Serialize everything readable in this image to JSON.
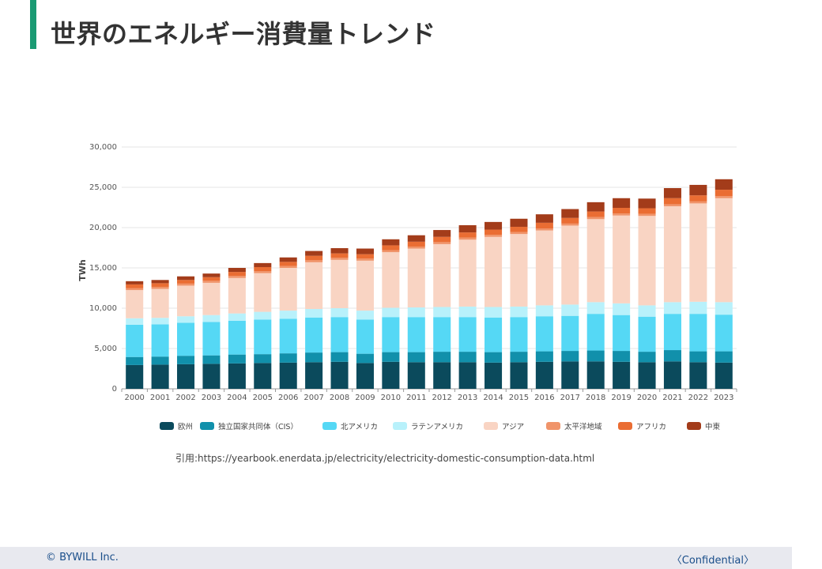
{
  "page": {
    "title": "世界のエネルギー消費量トレンド",
    "source": "引用:https://yearbook.enerdata.jp/electricity/electricity-domestic-consumption-data.html",
    "copyright": "© BYWILL Inc.",
    "confidential": "〈Confidential〉"
  },
  "chart_data": {
    "type": "bar",
    "stacked": true,
    "title": "",
    "xlabel": "",
    "ylabel": "TWh",
    "ylim": [
      0,
      30000
    ],
    "yticks": [
      0,
      5000,
      10000,
      15000,
      20000,
      25000,
      30000
    ],
    "ytick_labels": [
      "0",
      "5,000",
      "10,000",
      "15,000",
      "20,000",
      "25,000",
      "30,000"
    ],
    "grid": true,
    "legend_position": "bottom",
    "categories": [
      "2000",
      "2001",
      "2002",
      "2003",
      "2004",
      "2005",
      "2006",
      "2007",
      "2008",
      "2009",
      "2010",
      "2011",
      "2012",
      "2013",
      "2014",
      "2015",
      "2016",
      "2017",
      "2018",
      "2019",
      "2020",
      "2021",
      "2022",
      "2023"
    ],
    "series": [
      {
        "name": "欧州",
        "color": "#0b4a5c",
        "values": [
          2950,
          3000,
          3050,
          3100,
          3150,
          3200,
          3250,
          3300,
          3350,
          3200,
          3350,
          3300,
          3300,
          3300,
          3250,
          3300,
          3350,
          3400,
          3400,
          3350,
          3300,
          3400,
          3300,
          3250
        ]
      },
      {
        "name": "独立国家共同体（CIS）",
        "color": "#1190ab",
        "values": [
          1000,
          1000,
          1050,
          1050,
          1100,
          1100,
          1150,
          1200,
          1200,
          1150,
          1200,
          1250,
          1300,
          1300,
          1300,
          1300,
          1300,
          1300,
          1350,
          1350,
          1300,
          1400,
          1350,
          1400
        ]
      },
      {
        "name": "北アメリカ",
        "color": "#55d8f5",
        "values": [
          4000,
          4000,
          4100,
          4150,
          4200,
          4300,
          4300,
          4350,
          4350,
          4250,
          4350,
          4350,
          4300,
          4300,
          4300,
          4300,
          4350,
          4350,
          4550,
          4450,
          4350,
          4500,
          4650,
          4550
        ]
      },
      {
        "name": "ラテンアメリカ",
        "color": "#b8f1fb",
        "values": [
          800,
          800,
          800,
          850,
          900,
          950,
          1000,
          1050,
          1100,
          1100,
          1150,
          1200,
          1250,
          1300,
          1300,
          1300,
          1350,
          1400,
          1450,
          1450,
          1400,
          1450,
          1500,
          1550
        ]
      },
      {
        "name": "アジア",
        "color": "#f9d4c3",
        "values": [
          3500,
          3600,
          3800,
          4000,
          4400,
          4800,
          5300,
          5800,
          6000,
          6200,
          6900,
          7300,
          7800,
          8300,
          8700,
          9000,
          9300,
          9800,
          10300,
          10900,
          11100,
          11900,
          12200,
          12900
        ]
      },
      {
        "name": "太平洋地域",
        "color": "#f0946a",
        "values": [
          250,
          250,
          250,
          250,
          250,
          250,
          250,
          250,
          250,
          250,
          250,
          250,
          250,
          250,
          250,
          250,
          250,
          250,
          250,
          250,
          250,
          250,
          250,
          250
        ]
      },
      {
        "name": "アフリカ",
        "color": "#ea6d33",
        "values": [
          450,
          450,
          450,
          450,
          500,
          500,
          500,
          550,
          550,
          550,
          600,
          600,
          650,
          650,
          650,
          650,
          700,
          700,
          700,
          700,
          700,
          750,
          750,
          800
        ]
      },
      {
        "name": "中東",
        "color": "#a33c1a",
        "values": [
          400,
          400,
          450,
          450,
          500,
          500,
          550,
          600,
          650,
          700,
          750,
          800,
          850,
          900,
          950,
          1000,
          1050,
          1100,
          1150,
          1200,
          1200,
          1250,
          1300,
          1300
        ]
      }
    ]
  }
}
